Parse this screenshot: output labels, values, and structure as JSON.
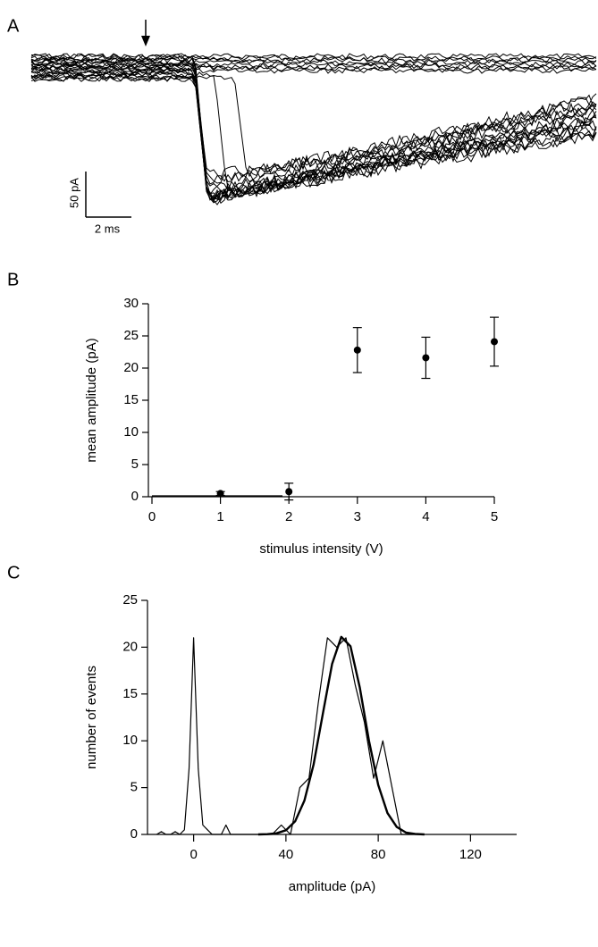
{
  "panels": [
    "A",
    "B",
    "C"
  ],
  "scale_bar": {
    "amplitude": "50 pA",
    "time": "2 ms"
  },
  "chart_data": [
    {
      "type": "scatter",
      "panel": "B",
      "x_label": "stimulus intensity (V)",
      "y_label": "mean amplitude (pA)",
      "x": [
        1,
        2,
        3,
        4,
        5
      ],
      "values": [
        0.5,
        0.8,
        22.8,
        21.6,
        24.1
      ],
      "errors": [
        0.3,
        1.3,
        3.5,
        3.2,
        3.8
      ],
      "color": "#000000",
      "xlim": [
        0,
        5
      ],
      "xticks": [
        0,
        1,
        2,
        3,
        4,
        5
      ],
      "ylim": [
        0,
        30
      ],
      "yticks": [
        0,
        5,
        10,
        15,
        20,
        25,
        30
      ]
    },
    {
      "type": "line",
      "panel": "C",
      "x_label": "amplitude (pA)",
      "y_label": "number of events",
      "series": [
        {
          "color": "#000000",
          "line_width": 1.2,
          "x": [
            -16,
            -14,
            -12,
            -10,
            -8,
            -6,
            -4,
            -2,
            0,
            2,
            4,
            6,
            8,
            10,
            12,
            14,
            16,
            20,
            26,
            30,
            34,
            38,
            42,
            46,
            50,
            54,
            58,
            62,
            66,
            70,
            74,
            78,
            82,
            86,
            90,
            94,
            100
          ],
          "values": [
            0,
            0.3,
            0,
            0,
            0.3,
            0,
            0.5,
            7,
            21,
            7,
            1,
            0.5,
            0,
            0,
            0,
            1,
            0,
            0,
            0,
            0,
            0,
            1,
            0,
            5,
            6,
            14,
            21,
            20,
            21,
            16,
            12,
            6,
            10,
            5,
            0,
            0,
            0
          ]
        },
        {
          "color": "#000000",
          "line_width": 2.4,
          "x": [
            28,
            32,
            36,
            40,
            44,
            48,
            52,
            56,
            60,
            64,
            68,
            72,
            76,
            80,
            84,
            88,
            92,
            96,
            100
          ],
          "values": [
            0,
            0.03,
            0.12,
            0.45,
            1.4,
            3.6,
            7.5,
            12.9,
            18.2,
            21.1,
            20.1,
            15.7,
            10,
            5.3,
            2.3,
            0.8,
            0.2,
            0.06,
            0
          ]
        }
      ],
      "xlim": [
        -20,
        140
      ],
      "xticks": [
        0,
        40,
        80,
        120
      ],
      "ylim": [
        0,
        25
      ],
      "yticks": [
        0,
        5,
        10,
        15,
        20,
        25
      ]
    }
  ]
}
